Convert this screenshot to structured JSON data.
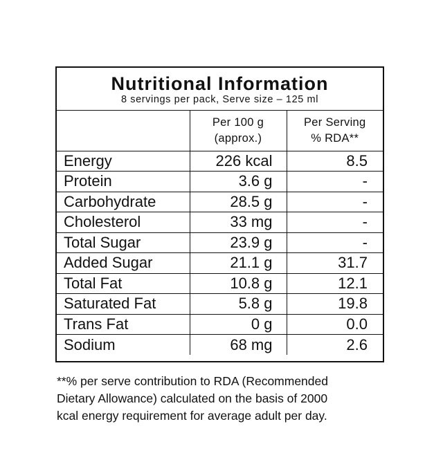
{
  "panel": {
    "title": "Nutritional Information",
    "subtitle": "8 servings per pack, Serve size – 125 ml",
    "col_per100_line1": "Per 100 g",
    "col_per100_line2": "(approx.)",
    "col_serving_line1": "Per Serving",
    "col_serving_line2": "% RDA**"
  },
  "rows": [
    {
      "nutrient": "Energy",
      "per100": "226 kcal",
      "rda": "8.5"
    },
    {
      "nutrient": "Protein",
      "per100": "3.6 g",
      "rda": "-"
    },
    {
      "nutrient": "Carbohydrate",
      "per100": "28.5 g",
      "rda": "-"
    },
    {
      "nutrient": "Cholesterol",
      "per100": "33 mg",
      "rda": "-"
    },
    {
      "nutrient": "Total Sugar",
      "per100": "23.9 g",
      "rda": "-"
    },
    {
      "nutrient": "Added Sugar",
      "per100": "21.1 g",
      "rda": "31.7"
    },
    {
      "nutrient": "Total Fat",
      "per100": "10.8 g",
      "rda": "12.1"
    },
    {
      "nutrient": "Saturated Fat",
      "per100": "5.8 g",
      "rda": "19.8"
    },
    {
      "nutrient": "Trans Fat",
      "per100": "0 g",
      "rda": "0.0"
    },
    {
      "nutrient": "Sodium",
      "per100": "68 mg",
      "rda": "2.6"
    }
  ],
  "footnote": {
    "line1": "**% per serve contribution to RDA (Recommended",
    "line2": "Dietary Allowance) calculated on the basis of 2000",
    "line3": "kcal energy requirement for average adult per day."
  }
}
